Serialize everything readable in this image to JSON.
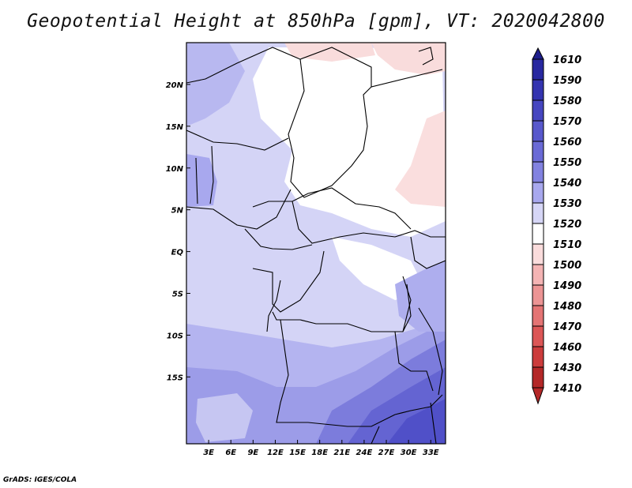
{
  "title": "Geopotential Height at 850hPa [gpm], VT: 2020042800",
  "credit": "GrADS: IGES/COLA",
  "map": {
    "lon_range": [
      0,
      35
    ],
    "lat_range": [
      -23,
      25
    ],
    "lat_ticks": [
      {
        "value": 20,
        "label": "20N"
      },
      {
        "value": 15,
        "label": "15N"
      },
      {
        "value": 10,
        "label": "10N"
      },
      {
        "value": 5,
        "label": "5N"
      },
      {
        "value": 0,
        "label": "EQ"
      },
      {
        "value": -5,
        "label": "5S"
      },
      {
        "value": -10,
        "label": "10S"
      },
      {
        "value": -15,
        "label": "15S"
      }
    ],
    "lon_ticks": [
      {
        "value": 3,
        "label": "3E"
      },
      {
        "value": 6,
        "label": "6E"
      },
      {
        "value": 9,
        "label": "9E"
      },
      {
        "value": 12,
        "label": "12E"
      },
      {
        "value": 15,
        "label": "15E"
      },
      {
        "value": 18,
        "label": "18E"
      },
      {
        "value": 21,
        "label": "21E"
      },
      {
        "value": 24,
        "label": "24E"
      },
      {
        "value": 27,
        "label": "27E"
      },
      {
        "value": 30,
        "label": "30E"
      },
      {
        "value": 33,
        "label": "33E"
      }
    ]
  },
  "colorbar": {
    "levels": [
      {
        "label": "1610",
        "color": "#1e1e8c"
      },
      {
        "label": "1590",
        "color": "#2828a0"
      },
      {
        "label": "1580",
        "color": "#3434b0"
      },
      {
        "label": "1570",
        "color": "#4646c0"
      },
      {
        "label": "1560",
        "color": "#5858cc"
      },
      {
        "label": "1550",
        "color": "#6a6ad6"
      },
      {
        "label": "1540",
        "color": "#8282e0"
      },
      {
        "label": "1530",
        "color": "#a8a8ee"
      },
      {
        "label": "1520",
        "color": "#d6d6f6"
      },
      {
        "label": "1510",
        "color": "#ffffff"
      },
      {
        "label": "1500",
        "color": "#fadcdc"
      },
      {
        "label": "1490",
        "color": "#f4b4b4"
      },
      {
        "label": "1480",
        "color": "#ec9494"
      },
      {
        "label": "1470",
        "color": "#e47474"
      },
      {
        "label": "1460",
        "color": "#dc5656"
      },
      {
        "label": "1430",
        "color": "#cc3c3c"
      },
      {
        "label": "1410",
        "color": "#b42828"
      }
    ],
    "top_color": "#1e1e8c",
    "bottom_color": "#b42828"
  }
}
